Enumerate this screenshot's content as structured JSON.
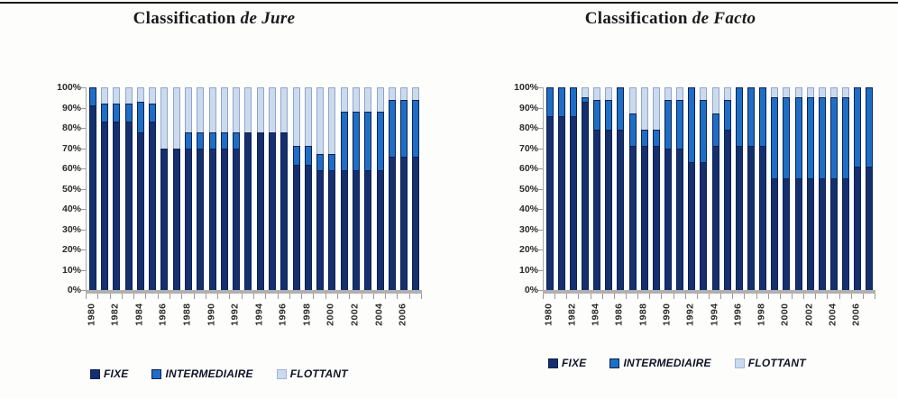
{
  "figure": {
    "background": "#fdfdfc",
    "top_rule": true
  },
  "colors": {
    "fixe": "#16306e",
    "intermediaire": "#1e6ec5",
    "flottant": "#ccdaee",
    "segment_border": "#0c2152",
    "flottant_border": "#8fa6c9",
    "axis_line": "#a8a8a8",
    "baseline": "#b0b0b0",
    "tick": "#999999",
    "axis_text": "#2a2a2a",
    "legend_text": "#111426",
    "title_text": "#1a1a1a"
  },
  "chart_data": [
    {
      "type": "bar",
      "stacked": true,
      "title": "Classification de Jure",
      "title_main": "Classification",
      "title_emph": "de Jure",
      "categories": [
        "1980",
        "1981",
        "1982",
        "1983",
        "1984",
        "1985",
        "1986",
        "1987",
        "1988",
        "1989",
        "1990",
        "1991",
        "1992",
        "1993",
        "1994",
        "1995",
        "1996",
        "1997",
        "1998",
        "1999",
        "2000",
        "2001",
        "2002",
        "2003",
        "2004",
        "2005",
        "2006",
        "2007"
      ],
      "series": [
        {
          "name": "FIXE",
          "color_key": "fixe",
          "values": [
            91,
            83,
            83,
            83,
            78,
            83,
            70,
            70,
            70,
            70,
            70,
            70,
            70,
            78,
            78,
            78,
            78,
            62,
            62,
            59,
            59,
            59,
            59,
            59,
            59,
            66,
            66,
            66
          ]
        },
        {
          "name": "INTERMEDIAIRE",
          "color_key": "intermediaire",
          "values": [
            9,
            9,
            9,
            9,
            15,
            9,
            0,
            0,
            8,
            8,
            8,
            8,
            8,
            0,
            0,
            0,
            0,
            9,
            9,
            8,
            8,
            29,
            29,
            29,
            29,
            28,
            28,
            28
          ]
        },
        {
          "name": "FLOTTANT",
          "color_key": "flottant",
          "values": [
            0,
            8,
            8,
            8,
            7,
            8,
            30,
            30,
            22,
            22,
            22,
            22,
            22,
            22,
            22,
            22,
            22,
            29,
            29,
            33,
            33,
            12,
            12,
            12,
            12,
            6,
            6,
            6
          ]
        }
      ],
      "ylim": [
        0,
        100
      ],
      "y_tick_labels": [
        "100%",
        "90%",
        "80%",
        "70%",
        "60%",
        "50%",
        "40%",
        "30%",
        "20%",
        "10%",
        "0%"
      ],
      "x_tick_labels": [
        "1980",
        "1982",
        "1984",
        "1986",
        "1988",
        "1990",
        "1992",
        "1994",
        "1996",
        "1998",
        "2000",
        "2002",
        "2004",
        "2006"
      ],
      "legend_position": "bottom",
      "grid": false
    },
    {
      "type": "bar",
      "stacked": true,
      "title": "Classification de Facto",
      "title_main": "Classification",
      "title_emph": "de Facto",
      "categories": [
        "1980",
        "1981",
        "1982",
        "1983",
        "1984",
        "1985",
        "1986",
        "1987",
        "1988",
        "1989",
        "1990",
        "1991",
        "1992",
        "1993",
        "1994",
        "1995",
        "1996",
        "1997",
        "1998",
        "1999",
        "2000",
        "2001",
        "2002",
        "2003",
        "2004",
        "2005",
        "2006",
        "2007"
      ],
      "series": [
        {
          "name": "FIXE",
          "color_key": "fixe",
          "values": [
            86,
            86,
            86,
            93,
            79,
            79,
            79,
            71,
            71,
            71,
            70,
            70,
            63,
            63,
            71,
            79,
            71,
            71,
            71,
            55,
            55,
            55,
            55,
            55,
            55,
            55,
            61,
            61
          ]
        },
        {
          "name": "INTERMEDIAIRE",
          "color_key": "intermediaire",
          "values": [
            14,
            14,
            14,
            2,
            15,
            15,
            21,
            16,
            8,
            8,
            24,
            24,
            37,
            31,
            16,
            15,
            29,
            29,
            29,
            40,
            40,
            40,
            40,
            40,
            40,
            40,
            39,
            39
          ]
        },
        {
          "name": "FLOTTANT",
          "color_key": "flottant",
          "values": [
            0,
            0,
            0,
            5,
            6,
            6,
            0,
            13,
            21,
            21,
            6,
            6,
            0,
            6,
            13,
            6,
            0,
            0,
            0,
            5,
            5,
            5,
            5,
            5,
            5,
            5,
            0,
            0
          ]
        }
      ],
      "ylim": [
        0,
        100
      ],
      "y_tick_labels": [
        "100%",
        "90%",
        "80%",
        "70%",
        "60%",
        "50%",
        "40%",
        "30%",
        "20%",
        "10%",
        "0%"
      ],
      "x_tick_labels": [
        "1980",
        "1982",
        "1984",
        "1986",
        "1988",
        "1990",
        "1992",
        "1994",
        "1996",
        "1998",
        "2000",
        "2002",
        "2004",
        "2006"
      ],
      "legend_position": "bottom",
      "grid": false
    }
  ]
}
